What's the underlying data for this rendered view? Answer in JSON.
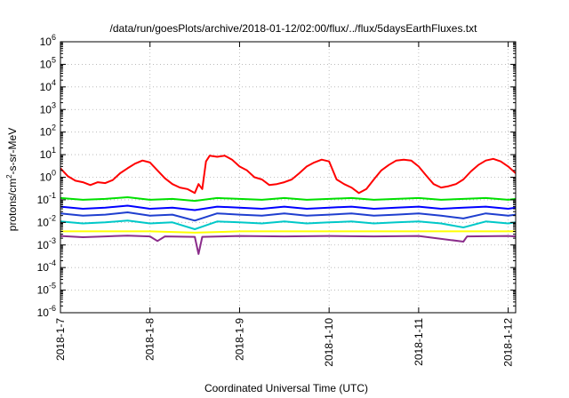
{
  "chart_data": {
    "type": "line",
    "title": "/data/run/goesPlots/archive/2018-01-12/02:00/flux/../flux/5daysEarthFluxes.txt",
    "xlabel": "Coordinated Universal Time (UTC)",
    "ylabel_parts": [
      "protons/cm",
      "2",
      "-s-sr-MeV"
    ],
    "yscale": "log",
    "ylim": [
      1e-06,
      1000000.0
    ],
    "yticks": [
      {
        "base": "10",
        "exp": "6",
        "value": 1000000.0
      },
      {
        "base": "10",
        "exp": "5",
        "value": 100000.0
      },
      {
        "base": "10",
        "exp": "4",
        "value": 10000.0
      },
      {
        "base": "10",
        "exp": "3",
        "value": 1000.0
      },
      {
        "base": "10",
        "exp": "2",
        "value": 100.0
      },
      {
        "base": "10",
        "exp": "1",
        "value": 10.0
      },
      {
        "base": "10",
        "exp": "0",
        "value": 1.0
      },
      {
        "base": "10",
        "exp": "-1",
        "value": 0.1
      },
      {
        "base": "10",
        "exp": "-2",
        "value": 0.01
      },
      {
        "base": "10",
        "exp": "-3",
        "value": 0.001
      },
      {
        "base": "10",
        "exp": "-4",
        "value": 0.0001
      },
      {
        "base": "10",
        "exp": "-5",
        "value": 1e-05
      },
      {
        "base": "10",
        "exp": "-6",
        "value": 1e-06
      }
    ],
    "xlim": [
      "2018-01-07T00:00",
      "2018-01-12T02:00"
    ],
    "xticks": [
      {
        "label": "2018-1-7",
        "value": "2018-01-07"
      },
      {
        "label": "2018-1-8",
        "value": "2018-01-08"
      },
      {
        "label": "2018-1-9",
        "value": "2018-01-09"
      },
      {
        "label": "2018-1-10",
        "value": "2018-01-10"
      },
      {
        "label": "2018-1-11",
        "value": "2018-01-11"
      },
      {
        "label": "2018-1-12",
        "value": "2018-01-12"
      }
    ],
    "grid": true,
    "legend": "none",
    "series": [
      {
        "color": "#ff0000",
        "points": [
          [
            "2018-01-07T00:00",
            2.5
          ],
          [
            "2018-01-07T02:00",
            1.1
          ],
          [
            "2018-01-07T04:00",
            0.7
          ],
          [
            "2018-01-07T06:00",
            0.6
          ],
          [
            "2018-01-07T08:00",
            0.45
          ],
          [
            "2018-01-07T10:00",
            0.6
          ],
          [
            "2018-01-07T12:00",
            0.55
          ],
          [
            "2018-01-07T14:00",
            0.75
          ],
          [
            "2018-01-07T16:00",
            1.5
          ],
          [
            "2018-01-07T18:00",
            2.5
          ],
          [
            "2018-01-07T20:00",
            4.0
          ],
          [
            "2018-01-07T22:00",
            5.5
          ],
          [
            "2018-01-08T00:00",
            4.5
          ],
          [
            "2018-01-08T02:00",
            2.0
          ],
          [
            "2018-01-08T04:00",
            0.9
          ],
          [
            "2018-01-08T06:00",
            0.5
          ],
          [
            "2018-01-08T08:00",
            0.35
          ],
          [
            "2018-01-08T10:00",
            0.3
          ],
          [
            "2018-01-08T12:00",
            0.2
          ],
          [
            "2018-01-08T13:00",
            0.5
          ],
          [
            "2018-01-08T14:00",
            0.3
          ],
          [
            "2018-01-08T15:00",
            5.0
          ],
          [
            "2018-01-08T16:00",
            9.0
          ],
          [
            "2018-01-08T18:00",
            8.0
          ],
          [
            "2018-01-08T20:00",
            9.0
          ],
          [
            "2018-01-08T22:00",
            6.0
          ],
          [
            "2018-01-09T00:00",
            3.0
          ],
          [
            "2018-01-09T02:00",
            2.0
          ],
          [
            "2018-01-09T04:00",
            1.0
          ],
          [
            "2018-01-09T06:00",
            0.8
          ],
          [
            "2018-01-09T08:00",
            0.45
          ],
          [
            "2018-01-09T10:00",
            0.5
          ],
          [
            "2018-01-09T12:00",
            0.6
          ],
          [
            "2018-01-09T14:00",
            0.8
          ],
          [
            "2018-01-09T16:00",
            1.5
          ],
          [
            "2018-01-09T18:00",
            3.0
          ],
          [
            "2018-01-09T20:00",
            4.5
          ],
          [
            "2018-01-09T22:00",
            6.0
          ],
          [
            "2018-01-10T00:00",
            5.0
          ],
          [
            "2018-01-10T02:00",
            0.8
          ],
          [
            "2018-01-10T04:00",
            0.5
          ],
          [
            "2018-01-10T06:00",
            0.35
          ],
          [
            "2018-01-10T08:00",
            0.2
          ],
          [
            "2018-01-10T10:00",
            0.3
          ],
          [
            "2018-01-10T12:00",
            0.8
          ],
          [
            "2018-01-10T14:00",
            2.0
          ],
          [
            "2018-01-10T16:00",
            3.5
          ],
          [
            "2018-01-10T18:00",
            5.5
          ],
          [
            "2018-01-10T20:00",
            6.0
          ],
          [
            "2018-01-10T22:00",
            5.5
          ],
          [
            "2018-01-11T00:00",
            3.0
          ],
          [
            "2018-01-11T02:00",
            1.2
          ],
          [
            "2018-01-11T04:00",
            0.5
          ],
          [
            "2018-01-11T06:00",
            0.35
          ],
          [
            "2018-01-11T08:00",
            0.4
          ],
          [
            "2018-01-11T10:00",
            0.5
          ],
          [
            "2018-01-11T12:00",
            0.8
          ],
          [
            "2018-01-11T14:00",
            1.8
          ],
          [
            "2018-01-11T16:00",
            3.5
          ],
          [
            "2018-01-11T18:00",
            5.5
          ],
          [
            "2018-01-11T20:00",
            6.5
          ],
          [
            "2018-01-11T22:00",
            5.0
          ],
          [
            "2018-01-12T00:00",
            3.0
          ],
          [
            "2018-01-12T02:00",
            1.5
          ]
        ]
      },
      {
        "color": "#00e000",
        "points": [
          [
            "2018-01-07T00:00",
            0.12
          ],
          [
            "2018-01-07T06:00",
            0.1
          ],
          [
            "2018-01-07T12:00",
            0.11
          ],
          [
            "2018-01-07T18:00",
            0.13
          ],
          [
            "2018-01-08T00:00",
            0.1
          ],
          [
            "2018-01-08T06:00",
            0.11
          ],
          [
            "2018-01-08T12:00",
            0.09
          ],
          [
            "2018-01-08T18:00",
            0.12
          ],
          [
            "2018-01-09T00:00",
            0.11
          ],
          [
            "2018-01-09T06:00",
            0.1
          ],
          [
            "2018-01-09T12:00",
            0.12
          ],
          [
            "2018-01-09T18:00",
            0.1
          ],
          [
            "2018-01-10T00:00",
            0.11
          ],
          [
            "2018-01-10T06:00",
            0.12
          ],
          [
            "2018-01-10T12:00",
            0.1
          ],
          [
            "2018-01-10T18:00",
            0.11
          ],
          [
            "2018-01-11T00:00",
            0.12
          ],
          [
            "2018-01-11T06:00",
            0.1
          ],
          [
            "2018-01-11T12:00",
            0.11
          ],
          [
            "2018-01-11T18:00",
            0.12
          ],
          [
            "2018-01-12T00:00",
            0.1
          ],
          [
            "2018-01-12T02:00",
            0.11
          ]
        ]
      },
      {
        "color": "#0000ff",
        "points": [
          [
            "2018-01-07T00:00",
            0.05
          ],
          [
            "2018-01-07T06:00",
            0.04
          ],
          [
            "2018-01-07T12:00",
            0.045
          ],
          [
            "2018-01-07T18:00",
            0.055
          ],
          [
            "2018-01-08T00:00",
            0.04
          ],
          [
            "2018-01-08T06:00",
            0.045
          ],
          [
            "2018-01-08T12:00",
            0.035
          ],
          [
            "2018-01-08T18:00",
            0.05
          ],
          [
            "2018-01-09T00:00",
            0.045
          ],
          [
            "2018-01-09T06:00",
            0.04
          ],
          [
            "2018-01-09T12:00",
            0.05
          ],
          [
            "2018-01-09T18:00",
            0.04
          ],
          [
            "2018-01-10T00:00",
            0.045
          ],
          [
            "2018-01-10T06:00",
            0.05
          ],
          [
            "2018-01-10T12:00",
            0.04
          ],
          [
            "2018-01-10T18:00",
            0.045
          ],
          [
            "2018-01-11T00:00",
            0.05
          ],
          [
            "2018-01-11T06:00",
            0.04
          ],
          [
            "2018-01-11T12:00",
            0.045
          ],
          [
            "2018-01-11T18:00",
            0.05
          ],
          [
            "2018-01-12T00:00",
            0.04
          ],
          [
            "2018-01-12T02:00",
            0.045
          ]
        ]
      },
      {
        "color": "#1f3fcf",
        "points": [
          [
            "2018-01-07T00:00",
            0.025
          ],
          [
            "2018-01-07T06:00",
            0.02
          ],
          [
            "2018-01-07T12:00",
            0.022
          ],
          [
            "2018-01-07T18:00",
            0.028
          ],
          [
            "2018-01-08T00:00",
            0.02
          ],
          [
            "2018-01-08T06:00",
            0.022
          ],
          [
            "2018-01-08T12:00",
            0.012
          ],
          [
            "2018-01-08T18:00",
            0.025
          ],
          [
            "2018-01-09T00:00",
            0.022
          ],
          [
            "2018-01-09T06:00",
            0.02
          ],
          [
            "2018-01-09T12:00",
            0.025
          ],
          [
            "2018-01-09T18:00",
            0.02
          ],
          [
            "2018-01-10T00:00",
            0.022
          ],
          [
            "2018-01-10T06:00",
            0.025
          ],
          [
            "2018-01-10T12:00",
            0.02
          ],
          [
            "2018-01-10T18:00",
            0.022
          ],
          [
            "2018-01-11T00:00",
            0.025
          ],
          [
            "2018-01-11T06:00",
            0.02
          ],
          [
            "2018-01-11T12:00",
            0.015
          ],
          [
            "2018-01-11T18:00",
            0.025
          ],
          [
            "2018-01-12T00:00",
            0.02
          ],
          [
            "2018-01-12T02:00",
            0.022
          ]
        ]
      },
      {
        "color": "#00c8c8",
        "points": [
          [
            "2018-01-07T00:00",
            0.011
          ],
          [
            "2018-01-07T06:00",
            0.009
          ],
          [
            "2018-01-07T12:00",
            0.01
          ],
          [
            "2018-01-07T18:00",
            0.012
          ],
          [
            "2018-01-08T00:00",
            0.009
          ],
          [
            "2018-01-08T06:00",
            0.01
          ],
          [
            "2018-01-08T12:00",
            0.005
          ],
          [
            "2018-01-08T18:00",
            0.011
          ],
          [
            "2018-01-09T00:00",
            0.01
          ],
          [
            "2018-01-09T06:00",
            0.009
          ],
          [
            "2018-01-09T12:00",
            0.011
          ],
          [
            "2018-01-09T18:00",
            0.009
          ],
          [
            "2018-01-10T00:00",
            0.01
          ],
          [
            "2018-01-10T06:00",
            0.011
          ],
          [
            "2018-01-10T12:00",
            0.009
          ],
          [
            "2018-01-10T18:00",
            0.01
          ],
          [
            "2018-01-11T00:00",
            0.011
          ],
          [
            "2018-01-11T06:00",
            0.009
          ],
          [
            "2018-01-11T12:00",
            0.006
          ],
          [
            "2018-01-11T18:00",
            0.011
          ],
          [
            "2018-01-12T00:00",
            0.009
          ],
          [
            "2018-01-12T02:00",
            0.01
          ]
        ]
      },
      {
        "color": "#ffff00",
        "points": [
          [
            "2018-01-07T00:00",
            0.004
          ],
          [
            "2018-01-07T12:00",
            0.004
          ],
          [
            "2018-01-08T00:00",
            0.004
          ],
          [
            "2018-01-08T12:00",
            0.0035
          ],
          [
            "2018-01-09T00:00",
            0.004
          ],
          [
            "2018-01-09T12:00",
            0.004
          ],
          [
            "2018-01-10T00:00",
            0.004
          ],
          [
            "2018-01-10T12:00",
            0.004
          ],
          [
            "2018-01-11T00:00",
            0.004
          ],
          [
            "2018-01-11T12:00",
            0.004
          ],
          [
            "2018-01-12T00:00",
            0.004
          ],
          [
            "2018-01-12T02:00",
            0.004
          ]
        ]
      },
      {
        "color": "#8b2d8b",
        "points": [
          [
            "2018-01-07T00:00",
            0.0025
          ],
          [
            "2018-01-07T06:00",
            0.0022
          ],
          [
            "2018-01-07T12:00",
            0.0024
          ],
          [
            "2018-01-07T18:00",
            0.0026
          ],
          [
            "2018-01-08T00:00",
            0.0024
          ],
          [
            "2018-01-08T02:00",
            0.0015
          ],
          [
            "2018-01-08T04:00",
            0.0024
          ],
          [
            "2018-01-08T12:00",
            0.0023
          ],
          [
            "2018-01-08T13:00",
            0.0004
          ],
          [
            "2018-01-08T14:00",
            0.0023
          ],
          [
            "2018-01-09T00:00",
            0.0025
          ],
          [
            "2018-01-09T12:00",
            0.0024
          ],
          [
            "2018-01-10T00:00",
            0.0025
          ],
          [
            "2018-01-10T12:00",
            0.0024
          ],
          [
            "2018-01-11T00:00",
            0.0025
          ],
          [
            "2018-01-11T12:00",
            0.0014
          ],
          [
            "2018-01-11T13:00",
            0.0024
          ],
          [
            "2018-01-12T00:00",
            0.0025
          ],
          [
            "2018-01-12T02:00",
            0.0024
          ]
        ]
      }
    ]
  }
}
